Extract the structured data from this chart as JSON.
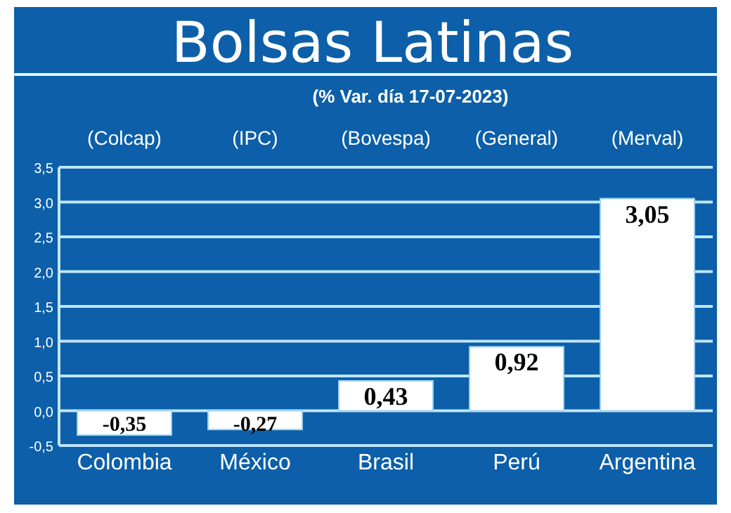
{
  "chart_data": {
    "type": "bar",
    "title": "Bolsas Latinas",
    "subtitle": "(% Var. día 17-07-2023)",
    "categories": [
      "Colombia",
      "México",
      "Brasil",
      "Perú",
      "Argentina"
    ],
    "values": [
      -0.35,
      -0.27,
      0.43,
      0.92,
      3.05
    ],
    "color": "#ffffff",
    "value_labels": [
      "-0,35",
      "-0,27",
      "0,43",
      "0,92",
      "3,05"
    ],
    "ylim": [
      -0.5,
      3.5
    ],
    "yticks": [
      {
        "value": -0.5,
        "label": "-0,5"
      },
      {
        "value": 0,
        "label": "0,0"
      },
      {
        "value": 0.5,
        "label": "0,5"
      },
      {
        "value": 1,
        "label": "1,0"
      },
      {
        "value": 1.5,
        "label": "1,5"
      },
      {
        "value": 2,
        "label": "2,0"
      },
      {
        "value": 2.5,
        "label": "2,5"
      },
      {
        "value": 3,
        "label": "3,0"
      },
      {
        "value": 3.5,
        "label": "3,5"
      }
    ],
    "grid": "y",
    "annotations": [
      "(Colcap)",
      "(IPC)",
      "(Bovespa)",
      "(General)",
      "(Merval)"
    ]
  }
}
